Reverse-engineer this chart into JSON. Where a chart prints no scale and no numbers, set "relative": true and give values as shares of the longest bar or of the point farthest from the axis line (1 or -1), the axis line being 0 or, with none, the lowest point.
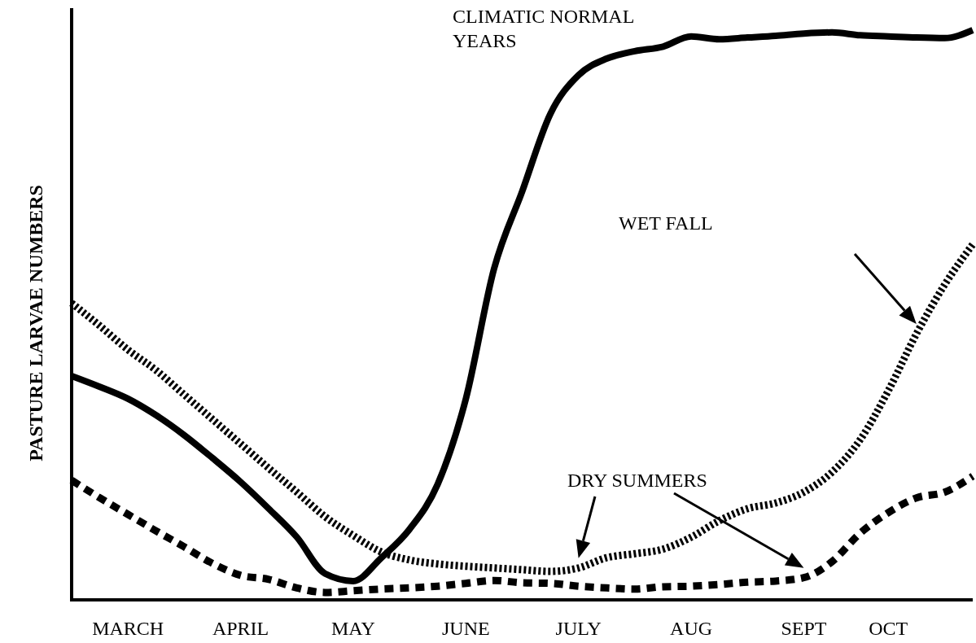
{
  "chart_data": {
    "type": "line",
    "relative": true,
    "ylabel": "PASTURE LARVAE NUMBERS",
    "annotations": [
      "CLIMATIC NORMAL YEARS",
      "WET FALL",
      "DRY SUMMERS"
    ],
    "categories": [
      null,
      null,
      "MARCH",
      null,
      null,
      null,
      "APRIL",
      null,
      null,
      null,
      "MAY",
      null,
      null,
      null,
      "JUNE",
      null,
      null,
      null,
      "JULY",
      null,
      null,
      null,
      "AUG",
      null,
      null,
      null,
      "SEPT",
      null,
      null,
      "OCT",
      null,
      null,
      null
    ],
    "series": [
      {
        "color": "#000000",
        "line_style": "solid",
        "values": [
          0.393,
          0.374,
          0.353,
          0.324,
          0.289,
          0.249,
          0.207,
          0.16,
          0.11,
          0.046,
          0.033,
          0.074,
          0.124,
          0.203,
          0.353,
          0.581,
          0.717,
          0.853,
          0.921,
          0.95,
          0.963,
          0.971,
          0.989,
          0.984,
          0.987,
          0.99,
          0.994,
          0.996,
          0.991,
          0.989,
          0.987,
          0.986,
          1.0
        ]
      },
      {
        "color": "#000000",
        "line_style": "dotted",
        "values": [
          0.521,
          0.481,
          0.439,
          0.403,
          0.36,
          0.317,
          0.274,
          0.231,
          0.189,
          0.146,
          0.113,
          0.084,
          0.07,
          0.063,
          0.059,
          0.056,
          0.053,
          0.05,
          0.056,
          0.074,
          0.081,
          0.089,
          0.11,
          0.139,
          0.16,
          0.17,
          0.189,
          0.224,
          0.281,
          0.367,
          0.467,
          0.553,
          0.624
        ]
      },
      {
        "color": "#000000",
        "line_style": "dashed",
        "values": [
          0.21,
          0.179,
          0.15,
          0.121,
          0.093,
          0.064,
          0.043,
          0.036,
          0.021,
          0.013,
          0.016,
          0.019,
          0.021,
          0.024,
          0.029,
          0.034,
          0.03,
          0.029,
          0.024,
          0.021,
          0.019,
          0.023,
          0.024,
          0.027,
          0.031,
          0.033,
          0.039,
          0.067,
          0.117,
          0.153,
          0.179,
          0.189,
          0.217
        ]
      }
    ]
  }
}
